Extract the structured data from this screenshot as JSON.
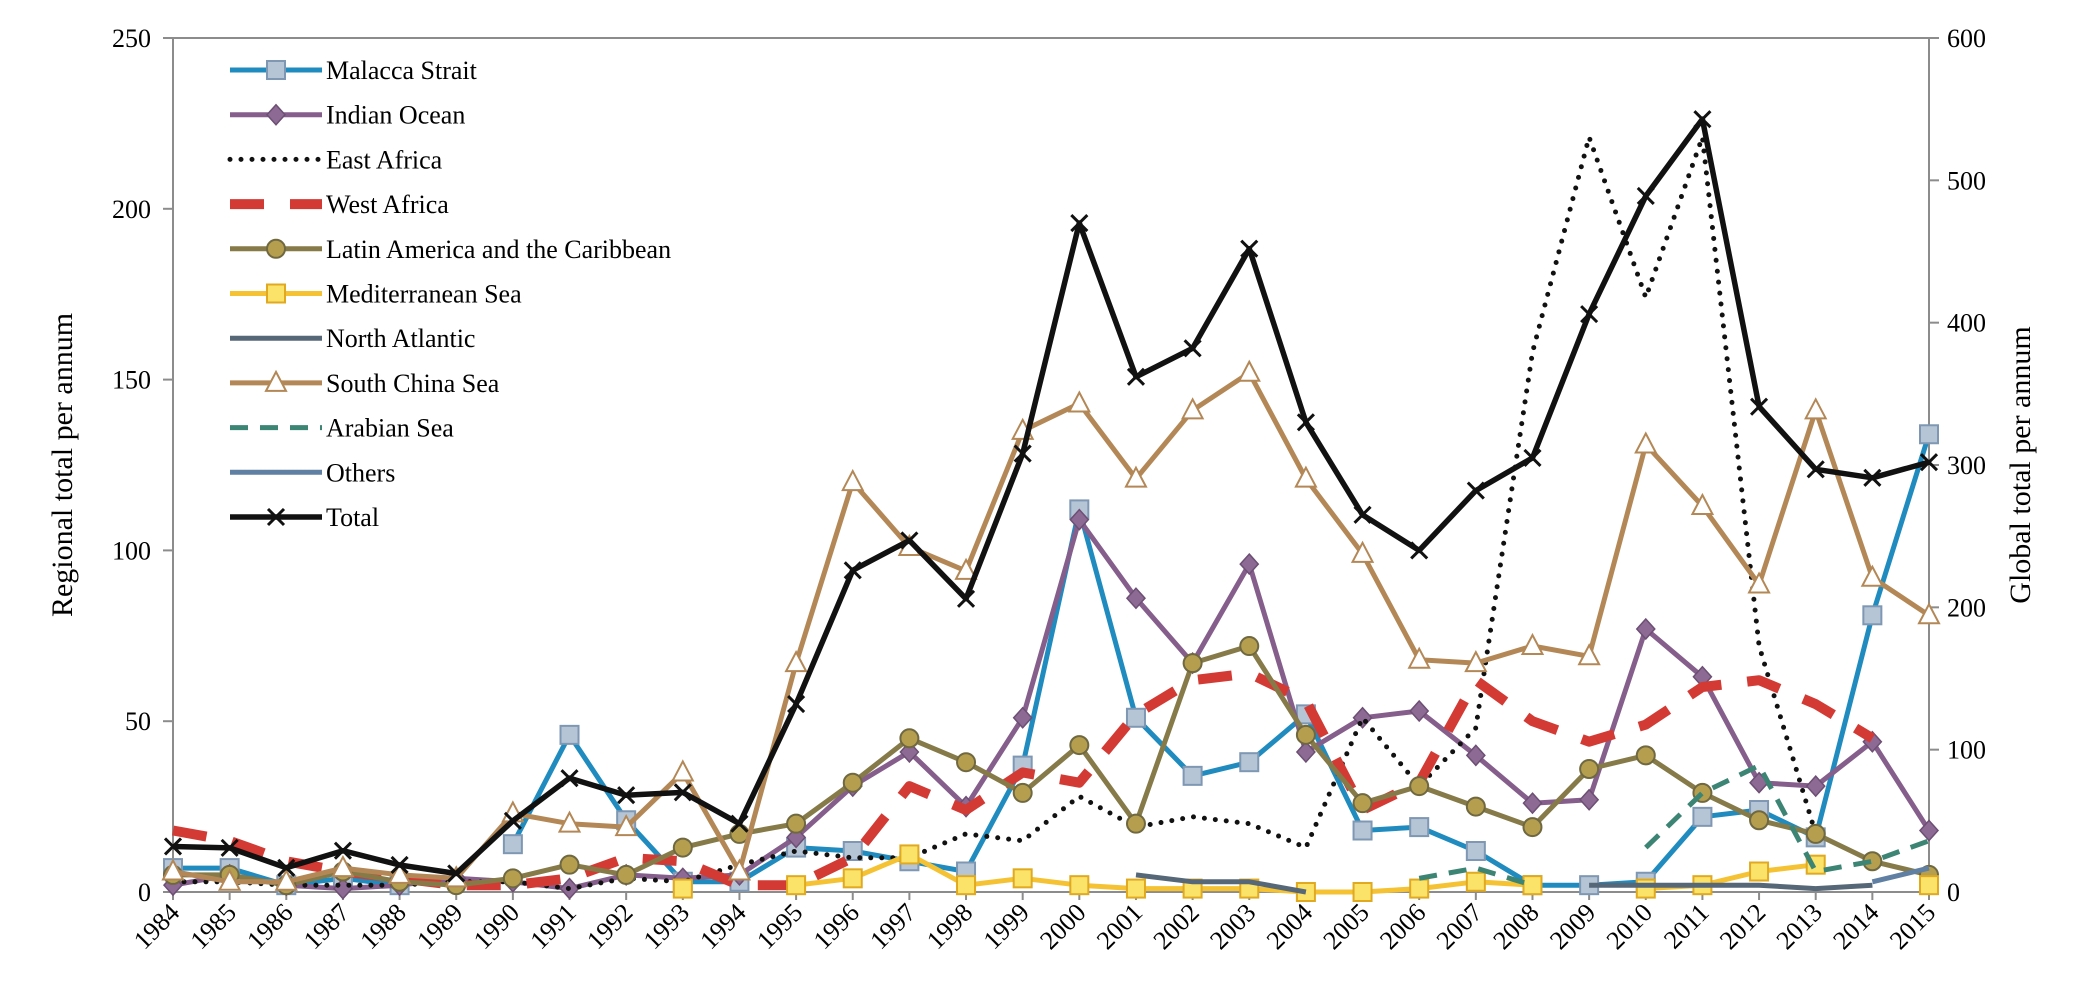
{
  "chart_data": {
    "type": "line",
    "title": "",
    "xlabel": "",
    "ylabel": "Regional total per annum",
    "y2label": "Global total per annum",
    "ylim": [
      0,
      250
    ],
    "y2lim": [
      0,
      600
    ],
    "yticks": [
      0,
      50,
      100,
      150,
      200,
      250
    ],
    "y2ticks": [
      0,
      100,
      200,
      300,
      400,
      500,
      600
    ],
    "categories": [
      "1984",
      "1985",
      "1986",
      "1987",
      "1988",
      "1989",
      "1990",
      "1991",
      "1992",
      "1993",
      "1994",
      "1995",
      "1996",
      "1997",
      "1998",
      "1999",
      "2000",
      "2001",
      "2002",
      "2003",
      "2004",
      "2005",
      "2006",
      "2007",
      "2008",
      "2009",
      "2010",
      "2011",
      "2012",
      "2013",
      "2014",
      "2015"
    ],
    "legend_position": "top-left",
    "grid": false,
    "series": [
      {
        "name": "Malacca Strait",
        "axis": "left",
        "color": "#1f8bbf",
        "style": "solid",
        "marker": "square",
        "values": [
          7,
          7,
          2,
          4,
          2,
          null,
          14,
          46,
          21,
          3,
          3,
          13,
          12,
          9,
          6,
          37,
          112,
          51,
          34,
          38,
          52,
          18,
          19,
          12,
          2,
          2,
          3,
          22,
          24,
          16,
          81,
          134
        ]
      },
      {
        "name": "Indian Ocean",
        "axis": "left",
        "color": "#855e8c",
        "style": "solid",
        "marker": "diamond",
        "values": [
          2,
          5,
          2,
          1,
          2,
          4,
          3,
          1,
          5,
          4,
          5,
          16,
          31,
          41,
          25,
          51,
          109,
          86,
          67,
          96,
          41,
          51,
          53,
          40,
          26,
          27,
          77,
          63,
          32,
          31,
          44,
          18
        ]
      },
      {
        "name": "East Africa",
        "axis": "left",
        "color": "#111111",
        "style": "dotted",
        "marker": "none",
        "values": [
          3,
          3,
          2,
          2,
          2,
          3,
          3,
          1,
          4,
          3,
          8,
          12,
          10,
          10,
          17,
          15,
          28,
          19,
          22,
          20,
          13,
          51,
          31,
          48,
          158,
          221,
          174,
          221,
          72,
          17,
          null,
          6
        ]
      },
      {
        "name": "West Africa",
        "axis": "left",
        "color": "#d33a34",
        "style": "dashed",
        "marker": "none",
        "values": [
          18,
          15,
          9,
          6,
          4,
          2,
          2,
          4,
          10,
          9,
          2,
          2,
          10,
          31,
          24,
          35,
          32,
          52,
          62,
          64,
          56,
          24,
          32,
          62,
          50,
          44,
          49,
          60,
          62,
          55,
          45,
          null
        ]
      },
      {
        "name": "Latin America and the Caribbean",
        "axis": "left",
        "color": "#857a48",
        "style": "solid",
        "marker": "circle",
        "values": [
          5,
          5,
          2,
          6,
          3,
          2,
          4,
          8,
          5,
          13,
          17,
          20,
          32,
          45,
          38,
          29,
          43,
          20,
          67,
          72,
          46,
          26,
          31,
          25,
          19,
          36,
          40,
          29,
          21,
          17,
          9,
          5
        ]
      },
      {
        "name": "Mediterranean Sea",
        "axis": "left",
        "color": "#f4c232",
        "style": "solid",
        "marker": "square",
        "values": [
          null,
          null,
          null,
          null,
          null,
          null,
          null,
          null,
          null,
          1,
          null,
          2,
          4,
          11,
          2,
          4,
          2,
          1,
          1,
          1,
          0,
          0,
          1,
          3,
          2,
          null,
          1,
          2,
          6,
          8,
          null,
          2
        ]
      },
      {
        "name": "North Atlantic",
        "axis": "left",
        "color": "#566778",
        "style": "solid",
        "marker": "none",
        "values": [
          null,
          null,
          null,
          null,
          null,
          null,
          null,
          null,
          null,
          null,
          null,
          null,
          null,
          null,
          null,
          null,
          null,
          5,
          3,
          3,
          0,
          null,
          null,
          null,
          null,
          2,
          2,
          2,
          2,
          1,
          2,
          null
        ]
      },
      {
        "name": "South China Sea",
        "axis": "left",
        "color": "#b38856",
        "style": "solid",
        "marker": "triangle",
        "values": [
          6,
          3,
          3,
          7,
          5,
          4,
          23,
          20,
          19,
          35,
          6,
          67,
          120,
          101,
          94,
          135,
          143,
          121,
          141,
          152,
          121,
          99,
          68,
          67,
          72,
          69,
          131,
          113,
          90,
          141,
          92,
          81
        ]
      },
      {
        "name": "Arabian Sea",
        "axis": "left",
        "color": "#3c8574",
        "style": "dashed",
        "marker": "none",
        "values": [
          null,
          null,
          null,
          null,
          null,
          null,
          null,
          null,
          null,
          null,
          null,
          null,
          null,
          null,
          null,
          null,
          null,
          null,
          null,
          null,
          null,
          null,
          4,
          7,
          2,
          null,
          13,
          29,
          37,
          6,
          9,
          15
        ]
      },
      {
        "name": "Others",
        "axis": "left",
        "color": "#5f7fa3",
        "style": "solid",
        "marker": "none",
        "values": [
          null,
          null,
          null,
          null,
          null,
          null,
          null,
          null,
          null,
          null,
          null,
          null,
          null,
          null,
          null,
          null,
          null,
          null,
          null,
          null,
          null,
          null,
          null,
          null,
          null,
          null,
          null,
          null,
          null,
          null,
          3,
          7
        ]
      },
      {
        "name": "Total",
        "axis": "right",
        "color": "#111111",
        "style": "solid",
        "marker": "x",
        "values": [
          32,
          31,
          17,
          29,
          19,
          13,
          50,
          80,
          68,
          70,
          48,
          132,
          226,
          247,
          206,
          308,
          470,
          362,
          382,
          452,
          330,
          265,
          240,
          282,
          305,
          406,
          489,
          543,
          341,
          297,
          291,
          302
        ]
      }
    ]
  }
}
